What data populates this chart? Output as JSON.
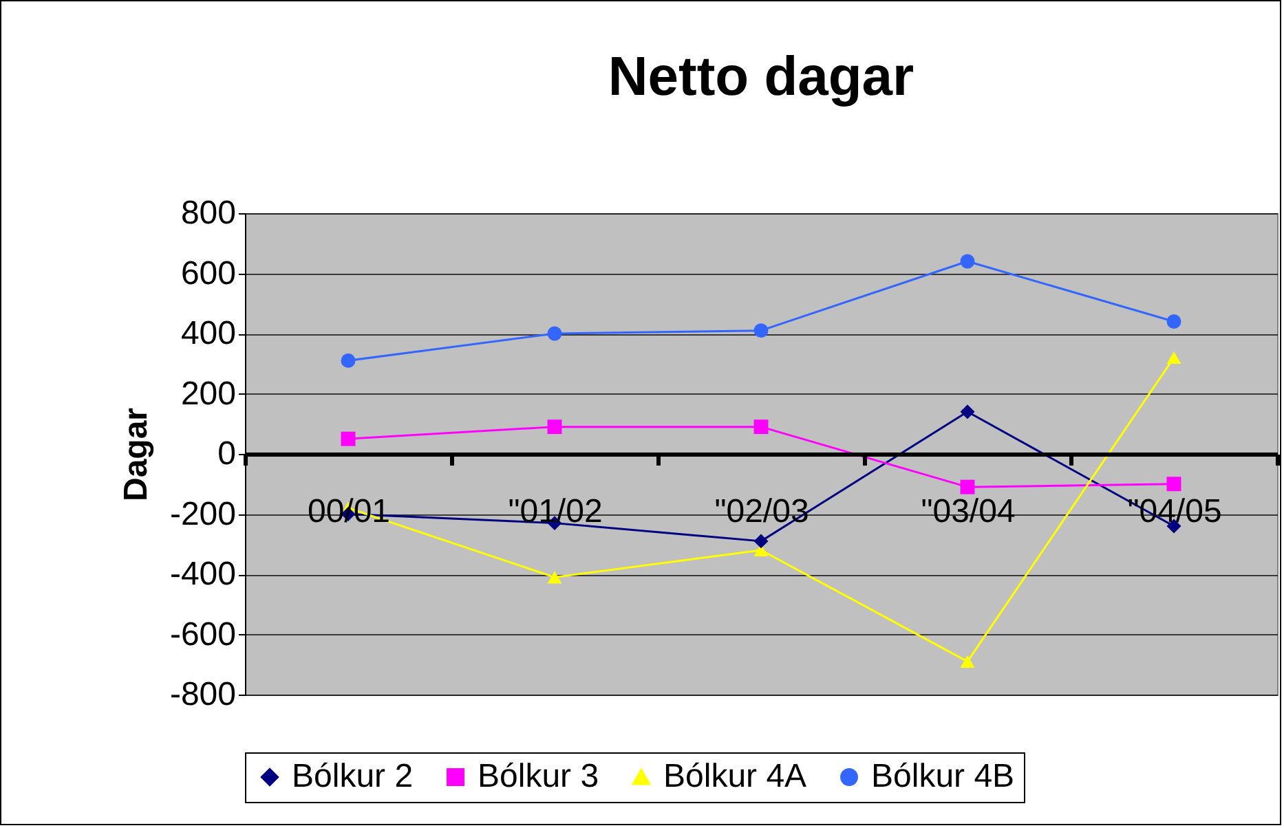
{
  "chart_data": {
    "type": "line",
    "title": "Netto dagar",
    "ylabel": "Dagar",
    "categories": [
      "00/01",
      "\"01/02",
      "\"02/03",
      "\"03/04",
      "\"04/05"
    ],
    "ylim": [
      -800,
      800
    ],
    "yticks": [
      -800,
      -600,
      -400,
      -200,
      0,
      200,
      400,
      600,
      800
    ],
    "grid": "y",
    "legend": "bottom",
    "line_style": "solid",
    "series": [
      {
        "name": "Bólkur 2",
        "color": "#000080",
        "marker": "diamond",
        "values": [
          -200,
          -230,
          -290,
          140,
          -240
        ]
      },
      {
        "name": "Bólkur 3",
        "color": "#ff00ff",
        "marker": "square",
        "values": [
          50,
          90,
          90,
          -110,
          -100
        ]
      },
      {
        "name": "Bólkur 4A",
        "color": "#ffff00",
        "marker": "triangle",
        "values": [
          -180,
          -410,
          -320,
          -690,
          320
        ]
      },
      {
        "name": "Bólkur 4B",
        "color": "#3366ff",
        "marker": "circle",
        "values": [
          310,
          400,
          410,
          640,
          440
        ]
      }
    ]
  }
}
